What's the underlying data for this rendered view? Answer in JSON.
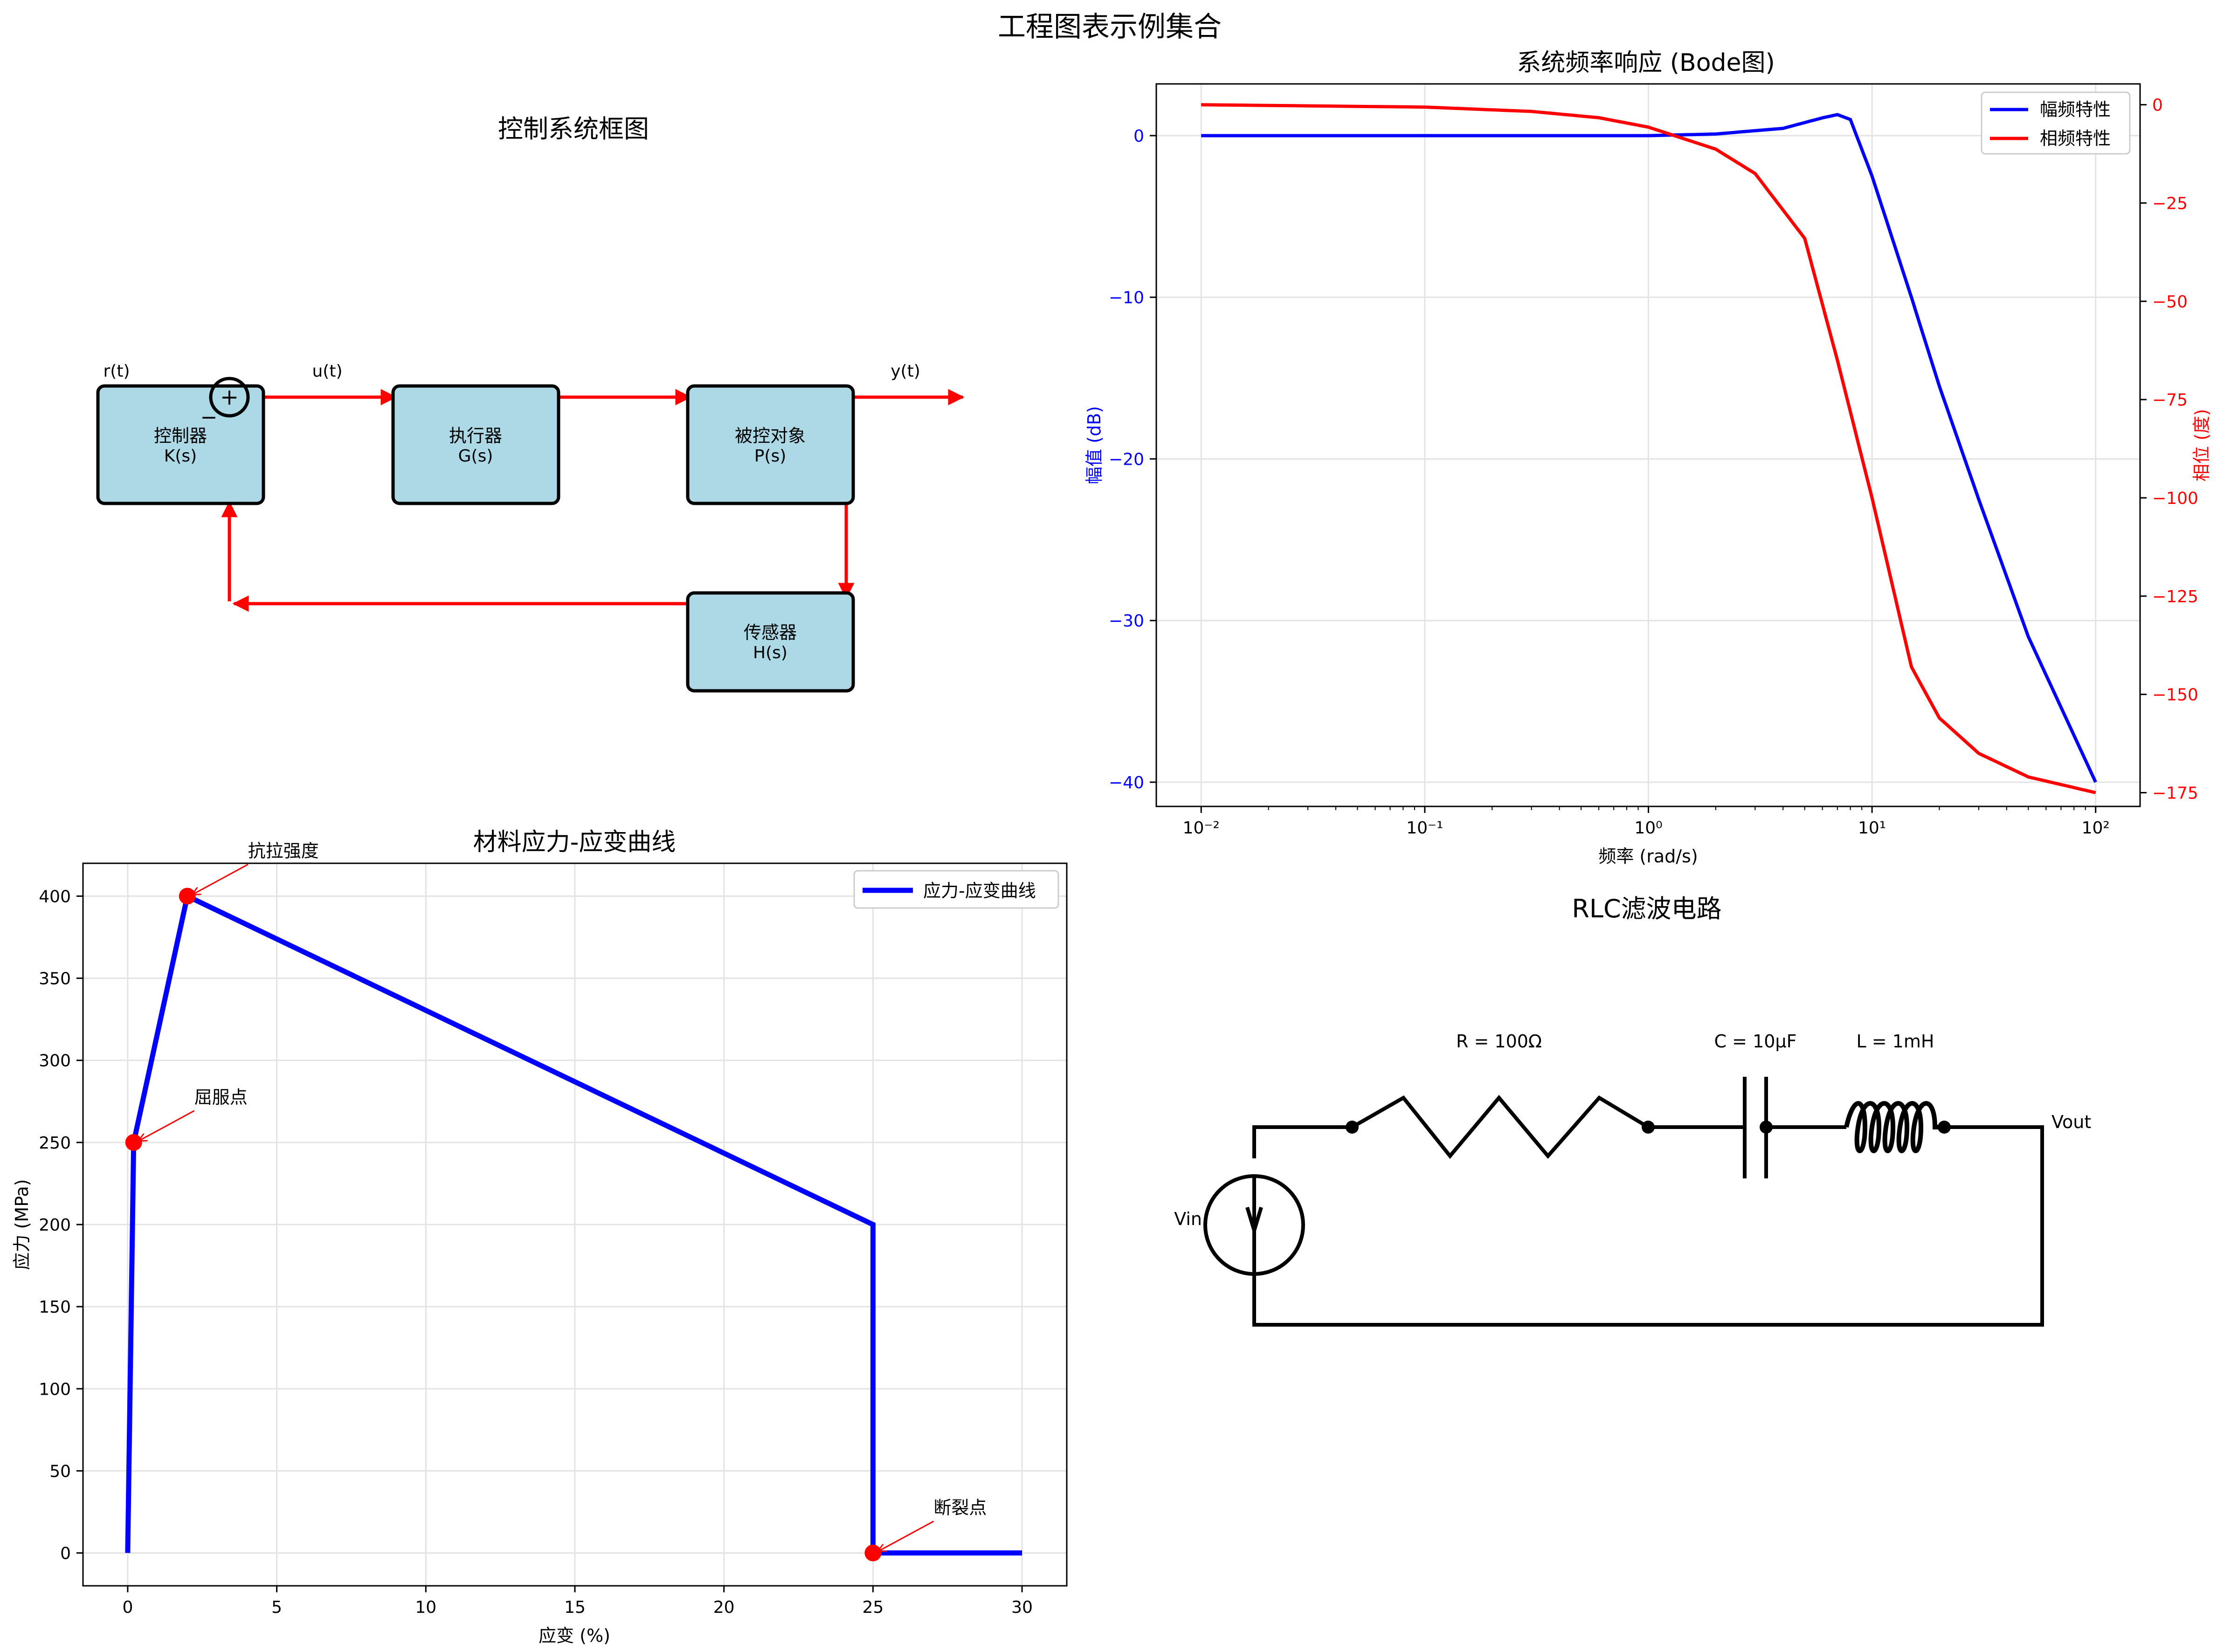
{
  "figure": {
    "title": "工程图表示例集合"
  },
  "block_diagram": {
    "title": "控制系统框图",
    "blocks": [
      {
        "name": "控制器",
        "tf": "K(s)"
      },
      {
        "name": "执行器",
        "tf": "G(s)"
      },
      {
        "name": "被控对象",
        "tf": "P(s)"
      },
      {
        "name": "传感器",
        "tf": "H(s)"
      }
    ],
    "signals": {
      "r": "r(t)",
      "u": "u(t)",
      "y": "y(t)"
    },
    "sum_plus": "+",
    "sum_minus": "−",
    "colors": {
      "block_fill": "#add8e6",
      "arrow": "#ff0000"
    }
  },
  "chart_data": [
    {
      "type": "line",
      "title": "系统频率响应 (Bode图)",
      "xlabel": "频率 (rad/s)",
      "ylabel": "幅值 (dB)",
      "y2label": "相位 (度)",
      "xscale": "log",
      "xlim": [
        0.0063,
        158
      ],
      "ylim": [
        -41.5,
        3.2
      ],
      "y2lim": [
        -178.5,
        5.3
      ],
      "xticks": [
        0.01,
        0.1,
        1,
        10,
        100
      ],
      "xtick_labels": [
        "10⁻²",
        "10⁻¹",
        "10⁰",
        "10¹",
        "10²"
      ],
      "yticks": [
        0,
        -10,
        -20,
        -30,
        -40
      ],
      "y2ticks": [
        0,
        -25,
        -50,
        -75,
        -100,
        -125,
        -150,
        -175
      ],
      "grid": true,
      "legend": "top-right",
      "series": [
        {
          "name": "幅频特性",
          "axis": "left",
          "color": "#0000ff",
          "x": [
            0.01,
            0.1,
            1,
            2,
            4,
            6,
            7,
            8,
            10,
            15,
            20,
            30,
            50,
            100
          ],
          "y": [
            0,
            0,
            0,
            0.1,
            0.45,
            1.1,
            1.3,
            1.0,
            -2.5,
            -10.0,
            -15.5,
            -22.5,
            -31.0,
            -40.0
          ]
        },
        {
          "name": "相频特性",
          "axis": "right",
          "color": "#ff0000",
          "x": [
            0.01,
            0.1,
            0.3,
            0.6,
            1,
            2,
            3,
            5,
            7,
            10,
            15,
            20,
            30,
            50,
            100
          ],
          "y": [
            0,
            -0.6,
            -1.7,
            -3.3,
            -5.7,
            -11.3,
            -17.5,
            -34,
            -65,
            -100,
            -143,
            -156,
            -165,
            -171,
            -175
          ]
        }
      ]
    },
    {
      "type": "line",
      "title": "材料应力-应变曲线",
      "xlabel": "应变 (%)",
      "ylabel": "应力 (MPa)",
      "xlim": [
        -1.5,
        31.5
      ],
      "ylim": [
        -20,
        420
      ],
      "xticks": [
        0,
        5,
        10,
        15,
        20,
        25,
        30
      ],
      "yticks": [
        0,
        50,
        100,
        150,
        200,
        250,
        300,
        350,
        400
      ],
      "grid": true,
      "legend": "top-right",
      "series": [
        {
          "name": "应力-应变曲线",
          "color": "#0000ff",
          "x": [
            0,
            0.2,
            2,
            25,
            25,
            30
          ],
          "y": [
            0,
            250,
            400,
            200,
            0,
            0
          ]
        }
      ],
      "points": [
        {
          "label": "屈服点",
          "x": 0.2,
          "y": 250
        },
        {
          "label": "抗拉强度",
          "x": 2,
          "y": 400
        },
        {
          "label": "断裂点",
          "x": 25,
          "y": 0
        }
      ],
      "colors": {
        "annotation": "#ff0000"
      }
    }
  ],
  "circuit": {
    "title": "RLC滤波电路",
    "labels": {
      "resistor": "R = 100Ω",
      "capacitor": "C = 10μF",
      "inductor": "L = 1mH",
      "source": "Vin",
      "output": "Vout"
    }
  }
}
